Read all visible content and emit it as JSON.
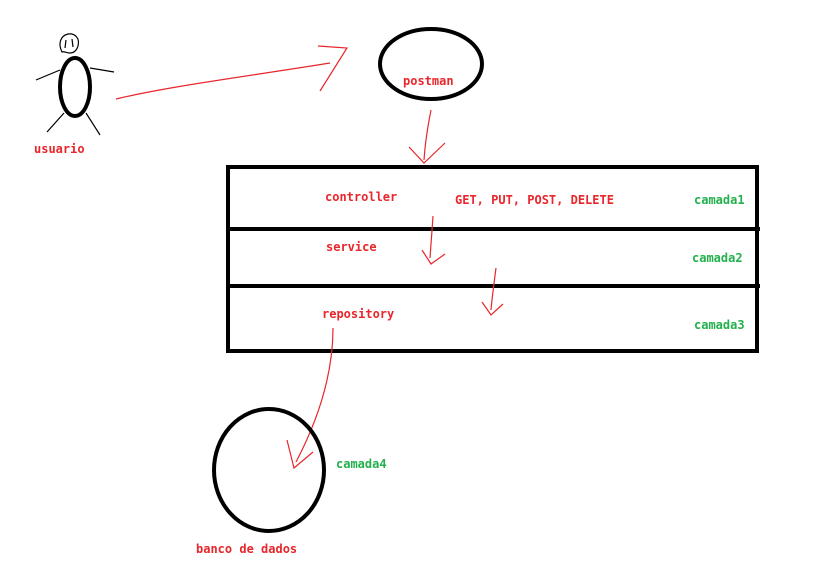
{
  "colors": {
    "ink": "#000000",
    "red": "#e8262b",
    "green": "#22b14c",
    "background": "#ffffff"
  },
  "actor": {
    "label": "usuario"
  },
  "client": {
    "label": "postman"
  },
  "layers": [
    {
      "name": "controller",
      "tag": "camada1",
      "methods": "GET, PUT, POST, DELETE"
    },
    {
      "name": "service",
      "tag": "camada2"
    },
    {
      "name": "repository",
      "tag": "camada3"
    }
  ],
  "database": {
    "label": "banco de dados",
    "tag": "camada4"
  }
}
